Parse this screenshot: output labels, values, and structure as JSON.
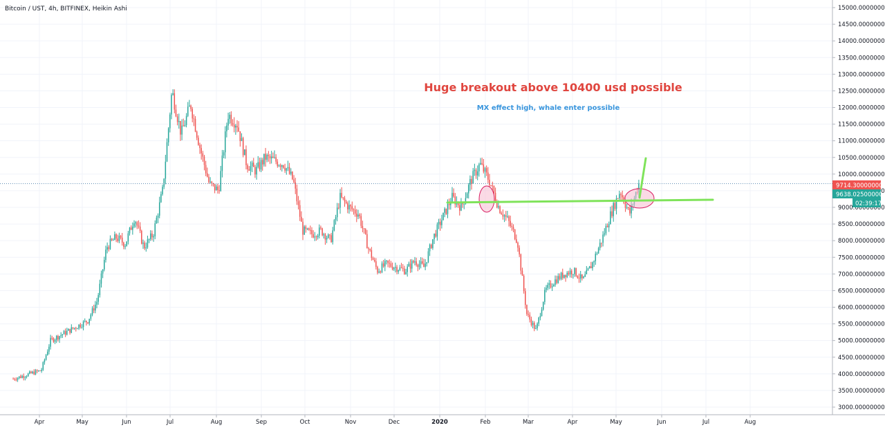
{
  "title": "Bitcoin / UST, 4h, BITFINEX, Heikin Ashi",
  "colors": {
    "up": "#26a69a",
    "down": "#ef5350",
    "trendline": "#7fe35a",
    "ellipse_fill": "#f8bbd0",
    "ellipse_stroke": "#d81b60",
    "annotation_main": "#e0463f",
    "annotation_sub": "#3a96dd",
    "label_red": "#ef5350",
    "label_green": "#26a69a"
  },
  "annotations": {
    "main": "Huge breakout above 10400 usd possible",
    "sub": "MX effect high, whale enter possible"
  },
  "price_labels": {
    "last": "9714.30000000",
    "second": "9638.02500000",
    "timer": "02:39:17"
  },
  "chart_data": {
    "type": "candlestick",
    "title": "Bitcoin / UST, 4h, BITFINEX, Heikin Ashi",
    "ylim": [
      2800,
      15300
    ],
    "y_ticks": [
      "15000.00000000",
      "14500.00000000",
      "14000.00000000",
      "13500.00000000",
      "13000.00000000",
      "12500.00000000",
      "12000.00000000",
      "11500.00000000",
      "11000.00000000",
      "10500.00000000",
      "10000.00000000",
      "9500.00000000",
      "9000.00000000",
      "8500.00000000",
      "8000.00000000",
      "7500.00000000",
      "7000.00000000",
      "6500.00000000",
      "6000.00000000",
      "5500.00000000",
      "5000.00000000",
      "4500.00000000",
      "4000.00000000",
      "3500.00000000",
      "3000.00000000"
    ],
    "x_ticks": [
      "Apr",
      "May",
      "Jun",
      "Jul",
      "Aug",
      "Sep",
      "Oct",
      "Nov",
      "Dec",
      "2020",
      "Feb",
      "Mar",
      "Apr",
      "May",
      "Jun",
      "Jul",
      "Aug"
    ],
    "x_tick_bold": [
      false,
      false,
      false,
      false,
      false,
      false,
      false,
      false,
      false,
      true,
      false,
      false,
      false,
      false,
      false,
      false,
      false
    ],
    "series": [
      {
        "name": "BTC/UST",
        "points": [
          [
            0,
            3850
          ],
          [
            1,
            3930
          ],
          [
            2,
            4020
          ],
          [
            3,
            4100
          ],
          [
            4,
            5000
          ],
          [
            5,
            5150
          ],
          [
            6,
            5300
          ],
          [
            7,
            5450
          ],
          [
            8,
            5600
          ],
          [
            9,
            6200
          ],
          [
            10,
            7800
          ],
          [
            11,
            8100
          ],
          [
            12,
            7900
          ],
          [
            13,
            8700
          ],
          [
            14,
            7800
          ],
          [
            15,
            8200
          ],
          [
            16,
            9500
          ],
          [
            17,
            12500
          ],
          [
            18,
            11200
          ],
          [
            19,
            12100
          ],
          [
            20,
            10800
          ],
          [
            21,
            9700
          ],
          [
            22,
            9500
          ],
          [
            23,
            11800
          ],
          [
            24,
            11500
          ],
          [
            25,
            10300
          ],
          [
            26,
            10100
          ],
          [
            27,
            10500
          ],
          [
            28,
            10400
          ],
          [
            29,
            10300
          ],
          [
            30,
            9800
          ],
          [
            31,
            8300
          ],
          [
            32,
            8200
          ],
          [
            33,
            8300
          ],
          [
            34,
            8000
          ],
          [
            35,
            9300
          ],
          [
            36,
            9000
          ],
          [
            37,
            8800
          ],
          [
            38,
            7800
          ],
          [
            39,
            7100
          ],
          [
            40,
            7300
          ],
          [
            41,
            7200
          ],
          [
            42,
            7100
          ],
          [
            43,
            7400
          ],
          [
            44,
            7200
          ],
          [
            45,
            8100
          ],
          [
            46,
            8700
          ],
          [
            47,
            9300
          ],
          [
            48,
            9000
          ],
          [
            49,
            9800
          ],
          [
            50,
            10300
          ],
          [
            51,
            9800
          ],
          [
            52,
            9000
          ],
          [
            53,
            8600
          ],
          [
            54,
            8000
          ],
          [
            55,
            5800
          ],
          [
            56,
            5300
          ],
          [
            57,
            6500
          ],
          [
            58,
            6800
          ],
          [
            59,
            7000
          ],
          [
            60,
            7100
          ],
          [
            61,
            6800
          ],
          [
            62,
            7300
          ],
          [
            63,
            8000
          ],
          [
            64,
            8800
          ],
          [
            65,
            9500
          ],
          [
            66,
            8800
          ],
          [
            67,
            9714
          ]
        ]
      }
    ],
    "horizontal_line": 9714.3
  }
}
